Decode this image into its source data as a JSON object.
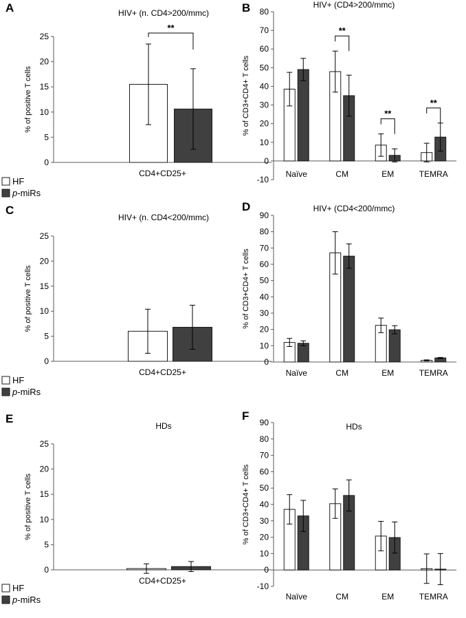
{
  "legend": [
    {
      "label": "HF",
      "color": "#ffffff"
    },
    {
      "prefix": "p",
      "label": "-miRs",
      "color": "#404040"
    }
  ],
  "chart_data": [
    {
      "panel": "A",
      "type": "bar",
      "title": "HIV+ (n. CD4>200/mmc)",
      "ylabel": "% of positive T cells",
      "ylim": [
        0,
        25
      ],
      "ytick_step": 5,
      "categories": [
        "CD4+CD25+"
      ],
      "series": [
        {
          "name": "HF",
          "values": [
            15.5
          ],
          "errors": [
            8.0
          ]
        },
        {
          "name": "p-miRs",
          "values": [
            10.6
          ],
          "errors": [
            8.0
          ]
        }
      ],
      "significance": [
        {
          "category": 0,
          "label": "**"
        }
      ]
    },
    {
      "panel": "B",
      "type": "bar",
      "title": "HIV+ (CD4>200/mmc)",
      "ylabel": "% of CD3+CD4+ T cells",
      "ylim": [
        -10,
        80
      ],
      "ytick_step": 10,
      "categories": [
        "Naïve",
        "CM",
        "EM",
        "TEMRA"
      ],
      "series": [
        {
          "name": "HF",
          "values": [
            38.5,
            47.9,
            8.5,
            4.5
          ],
          "errors": [
            9.0,
            11.0,
            6.0,
            5.0
          ]
        },
        {
          "name": "p-miRs",
          "values": [
            49.0,
            35.0,
            3.0,
            12.8
          ],
          "errors": [
            6.0,
            11.0,
            3.5,
            7.5
          ]
        }
      ],
      "significance": [
        {
          "category": 1,
          "label": "**"
        },
        {
          "category": 2,
          "label": "**"
        },
        {
          "category": 3,
          "label": "**"
        }
      ]
    },
    {
      "panel": "C",
      "type": "bar",
      "title": "HIV+ (n. CD4<200/mmc)",
      "ylabel": "% of positive T cells",
      "ylim": [
        0,
        25
      ],
      "ytick_step": 5,
      "categories": [
        "CD4+CD25+"
      ],
      "series": [
        {
          "name": "HF",
          "values": [
            6.0
          ],
          "errors": [
            4.4
          ]
        },
        {
          "name": "p-miRs",
          "values": [
            6.8
          ],
          "errors": [
            4.4
          ]
        }
      ],
      "significance": []
    },
    {
      "panel": "D",
      "type": "bar",
      "title": "HIV+ (CD4<200/mmc)",
      "ylabel": "% of CD3+CD4+ T cells",
      "ylim": [
        0,
        90
      ],
      "ytick_step": 10,
      "categories": [
        "Naïve",
        "CM",
        "EM",
        "TEMRA"
      ],
      "series": [
        {
          "name": "HF",
          "values": [
            12.0,
            67.0,
            22.5,
            1.0
          ],
          "errors": [
            2.5,
            13.0,
            4.5,
            0.3
          ]
        },
        {
          "name": "p-miRs",
          "values": [
            11.5,
            65.0,
            19.8,
            2.5
          ],
          "errors": [
            1.5,
            7.5,
            2.5,
            0.3
          ]
        }
      ],
      "significance": []
    },
    {
      "panel": "E",
      "type": "bar",
      "title": "HDs",
      "ylabel": "% of positive T cells",
      "ylim": [
        0,
        25
      ],
      "ytick_step": 5,
      "categories": [
        "CD4+CD25+"
      ],
      "series": [
        {
          "name": "HF",
          "values": [
            0.25
          ],
          "errors": [
            0.95
          ]
        },
        {
          "name": "p-miRs",
          "values": [
            0.65
          ],
          "errors": [
            1.0
          ]
        }
      ],
      "significance": []
    },
    {
      "panel": "F",
      "type": "bar",
      "title": "HDs",
      "ylabel": "% of CD3+CD4+ T cells",
      "ylim": [
        -10,
        90
      ],
      "ytick_step": 10,
      "categories": [
        "Naïve",
        "CM",
        "EM",
        "TEMRA"
      ],
      "series": [
        {
          "name": "HF",
          "values": [
            37.0,
            40.5,
            20.7,
            0.8
          ],
          "errors": [
            9.0,
            9.0,
            9.0,
            9.0
          ]
        },
        {
          "name": "p-miRs",
          "values": [
            33.0,
            45.5,
            19.8,
            0.5
          ],
          "errors": [
            9.5,
            9.5,
            9.5,
            9.5
          ]
        }
      ],
      "significance": []
    }
  ]
}
